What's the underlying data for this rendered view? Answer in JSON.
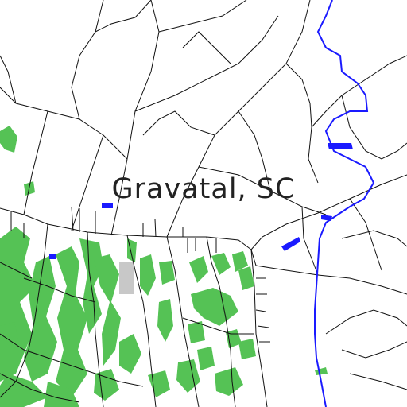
{
  "map": {
    "place_label": "Gravatal, SC",
    "colors": {
      "background": "#ffffff",
      "road": "#111111",
      "river": "#1a1aff",
      "vegetation": "#55c255",
      "urban_area": "#c8c8c8"
    },
    "layers": [
      "roads",
      "river",
      "water-bodies",
      "vegetation",
      "urban-area"
    ]
  }
}
